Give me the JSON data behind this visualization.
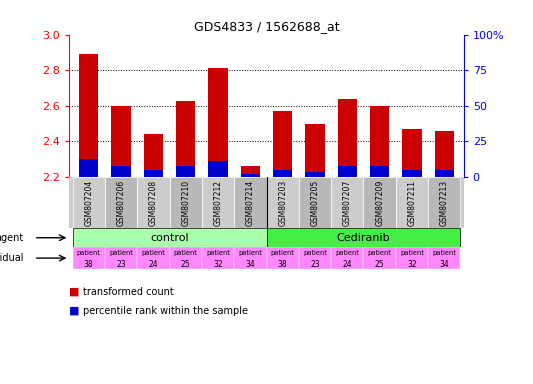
{
  "title": "GDS4833 / 1562688_at",
  "samples": [
    "GSM807204",
    "GSM807206",
    "GSM807208",
    "GSM807210",
    "GSM807212",
    "GSM807214",
    "GSM807203",
    "GSM807205",
    "GSM807207",
    "GSM807209",
    "GSM807211",
    "GSM807213"
  ],
  "red_values": [
    2.89,
    2.6,
    2.44,
    2.63,
    2.81,
    2.26,
    2.57,
    2.5,
    2.64,
    2.6,
    2.47,
    2.46
  ],
  "blue_values": [
    2.3,
    2.26,
    2.24,
    2.26,
    2.29,
    2.22,
    2.24,
    2.23,
    2.26,
    2.26,
    2.24,
    2.24
  ],
  "ymin": 2.2,
  "ymax": 3.0,
  "y_ticks": [
    2.2,
    2.4,
    2.6,
    2.8,
    3.0
  ],
  "y2_ticks": [
    0,
    25,
    50,
    75,
    100
  ],
  "bar_width": 0.6,
  "red_color": "#cc0000",
  "blue_color": "#0000cc",
  "bg_color": "#ffffff",
  "control_color": "#aaffaa",
  "cediranib_color": "#44ee44",
  "individual_color": "#ff88ff",
  "patients": [
    "38",
    "23",
    "24",
    "25",
    "32",
    "34",
    "38",
    "23",
    "24",
    "25",
    "32",
    "34"
  ]
}
